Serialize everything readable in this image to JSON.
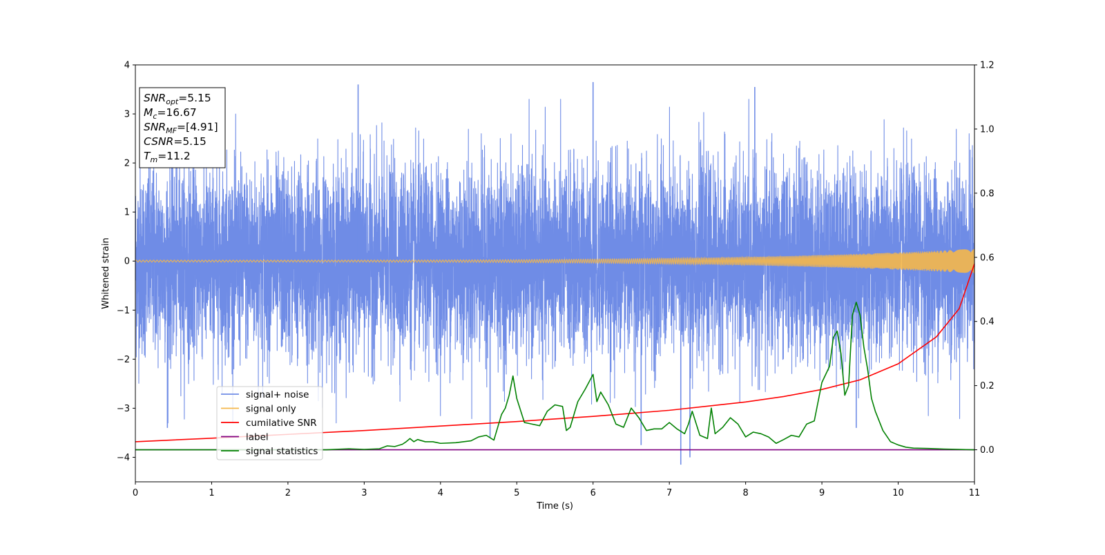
{
  "chart_data": {
    "type": "line",
    "title": "",
    "xlabel": "Time (s)",
    "ylabel": "Whitened strain",
    "y2label": "",
    "xlim": [
      0,
      11
    ],
    "ylim": [
      -4.5,
      4
    ],
    "y2lim": [
      -0.1,
      1.2
    ],
    "xticks": [
      "0",
      "1",
      "2",
      "3",
      "4",
      "5",
      "6",
      "7",
      "8",
      "9",
      "10",
      "11"
    ],
    "yticks": [
      "4",
      "3",
      "2",
      "1",
      "0",
      "−1",
      "−2",
      "−3",
      "−4"
    ],
    "y2ticks": [
      "1.2",
      "1.0",
      "0.8",
      "0.6",
      "0.4",
      "0.2",
      "0.0"
    ],
    "grid": false,
    "legend_location": "lower-left",
    "annotation": {
      "lines": [
        {
          "main": "SNR",
          "sub": "opt",
          "value": "=5.15"
        },
        {
          "main": "M",
          "sub": "c",
          "value": "=16.67",
          "upright": true
        },
        {
          "main": "SNR",
          "sub": "MF",
          "value": "=[4.91]"
        },
        {
          "main": "CSNR",
          "sub": "",
          "value": "=5.15"
        },
        {
          "main": "T",
          "sub": "m",
          "value": "=11.2"
        }
      ]
    },
    "series": [
      {
        "name": "signal+ noise",
        "color": "#6f8ce6",
        "axis": "left",
        "amplitude_envelope": 2.7,
        "peak_values": [
          3.6,
          3.65,
          3.55,
          -4.15,
          -3.75,
          -3.4
        ]
      },
      {
        "name": "signal only",
        "color": "#f5b74a",
        "axis": "left",
        "amplitude_start": 0.02,
        "amplitude_end": 0.25
      },
      {
        "name": "cumilative SNR",
        "color": "#ff0000",
        "axis": "right",
        "x": [
          0,
          1,
          2,
          3,
          4,
          5,
          6,
          7,
          8,
          8.5,
          9,
          9.5,
          10,
          10.5,
          10.8,
          11
        ],
        "values": [
          0.025,
          0.036,
          0.048,
          0.06,
          0.074,
          0.088,
          0.104,
          0.123,
          0.149,
          0.166,
          0.188,
          0.218,
          0.268,
          0.352,
          0.44,
          0.58
        ]
      },
      {
        "name": "label",
        "color": "#800080",
        "axis": "right",
        "x": [
          0,
          11
        ],
        "values": [
          0.0,
          0.0
        ]
      },
      {
        "name": "signal statistics",
        "color": "#008000",
        "axis": "right",
        "x": [
          0,
          1,
          2,
          2.5,
          2.8,
          3.0,
          3.2,
          3.3,
          3.4,
          3.5,
          3.55,
          3.6,
          3.65,
          3.7,
          3.8,
          3.9,
          4.0,
          4.2,
          4.4,
          4.5,
          4.6,
          4.7,
          4.8,
          4.85,
          4.9,
          4.95,
          5.0,
          5.1,
          5.2,
          5.3,
          5.4,
          5.5,
          5.6,
          5.65,
          5.7,
          5.8,
          5.9,
          6.0,
          6.05,
          6.1,
          6.2,
          6.3,
          6.4,
          6.5,
          6.6,
          6.7,
          6.8,
          6.9,
          7.0,
          7.1,
          7.2,
          7.25,
          7.3,
          7.4,
          7.5,
          7.55,
          7.6,
          7.7,
          7.8,
          7.9,
          8.0,
          8.1,
          8.2,
          8.3,
          8.4,
          8.5,
          8.6,
          8.7,
          8.8,
          8.9,
          9.0,
          9.1,
          9.15,
          9.2,
          9.25,
          9.3,
          9.35,
          9.4,
          9.45,
          9.5,
          9.55,
          9.6,
          9.65,
          9.7,
          9.8,
          9.9,
          10.0,
          10.1,
          10.2,
          10.4,
          10.6,
          10.8,
          11.0
        ],
        "values": [
          0.0,
          0.0,
          0.0,
          0.0,
          0.003,
          0.001,
          0.003,
          0.012,
          0.01,
          0.017,
          0.025,
          0.035,
          0.025,
          0.032,
          0.025,
          0.025,
          0.02,
          0.022,
          0.028,
          0.04,
          0.045,
          0.03,
          0.11,
          0.13,
          0.17,
          0.23,
          0.16,
          0.085,
          0.08,
          0.075,
          0.12,
          0.14,
          0.135,
          0.06,
          0.07,
          0.15,
          0.19,
          0.235,
          0.15,
          0.18,
          0.14,
          0.08,
          0.07,
          0.13,
          0.1,
          0.06,
          0.065,
          0.065,
          0.085,
          0.065,
          0.05,
          0.08,
          0.12,
          0.045,
          0.035,
          0.13,
          0.05,
          0.07,
          0.1,
          0.08,
          0.04,
          0.055,
          0.05,
          0.04,
          0.02,
          0.032,
          0.045,
          0.04,
          0.08,
          0.09,
          0.21,
          0.26,
          0.35,
          0.37,
          0.3,
          0.17,
          0.2,
          0.42,
          0.46,
          0.42,
          0.32,
          0.25,
          0.16,
          0.12,
          0.06,
          0.025,
          0.015,
          0.008,
          0.005,
          0.004,
          0.002,
          0.001,
          0.0
        ]
      }
    ]
  }
}
